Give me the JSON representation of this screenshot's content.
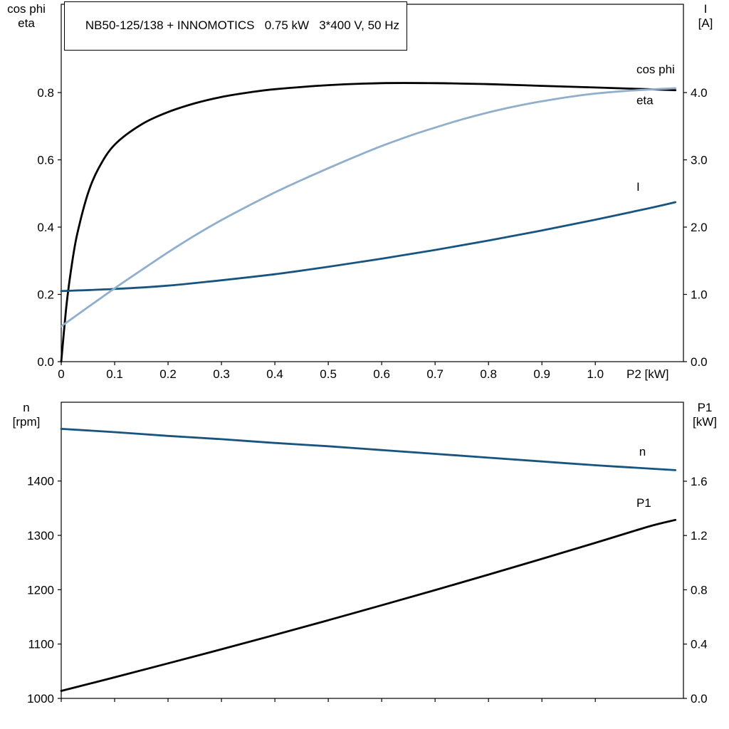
{
  "chart_data": [
    {
      "id": "performance",
      "type": "line",
      "title": "NB50-125/138 + INNOMOTICS   0.75 kW   3*400 V, 50 Hz",
      "xlabel": "P2 [kW]",
      "xlim": [
        0,
        1.165
      ],
      "grid": false,
      "legend_position": "curve-end-labels",
      "x_ticks": [
        0,
        0.1,
        0.2,
        0.3,
        0.4,
        0.5,
        0.6,
        0.7,
        0.8,
        0.9,
        1.0
      ],
      "x_tick_labels": [
        "0",
        "0.1",
        "0.2",
        "0.3",
        "0.4",
        "0.5",
        "0.6",
        "0.7",
        "0.8",
        "0.9",
        "1.0"
      ],
      "left_axis": {
        "label_lines": [
          "cos phi",
          "eta"
        ],
        "range": [
          0,
          1.0625
        ],
        "ticks": [
          0,
          0.2,
          0.4,
          0.6,
          0.8
        ],
        "tick_labels": [
          "0.0",
          "0.2",
          "0.4",
          "0.6",
          "0.8"
        ]
      },
      "right_axis": {
        "label_lines": [
          "I",
          "[A]"
        ],
        "range": [
          0,
          5.3125
        ],
        "ticks": [
          0,
          1,
          2,
          3,
          4
        ],
        "tick_labels": [
          "0.0",
          "1.0",
          "2.0",
          "3.0",
          "4.0"
        ]
      },
      "series": [
        {
          "name": "eta",
          "label": "eta",
          "axis": "left",
          "color": "#000000",
          "label_xy": [
            1.077,
            0.765
          ],
          "points": [
            [
              0,
              0
            ],
            [
              0.01,
              0.17
            ],
            [
              0.02,
              0.29
            ],
            [
              0.03,
              0.38
            ],
            [
              0.05,
              0.5
            ],
            [
              0.07,
              0.575
            ],
            [
              0.1,
              0.645
            ],
            [
              0.15,
              0.705
            ],
            [
              0.2,
              0.742
            ],
            [
              0.25,
              0.768
            ],
            [
              0.3,
              0.787
            ],
            [
              0.35,
              0.8
            ],
            [
              0.4,
              0.81
            ],
            [
              0.5,
              0.822
            ],
            [
              0.6,
              0.828
            ],
            [
              0.7,
              0.828
            ],
            [
              0.8,
              0.825
            ],
            [
              0.9,
              0.82
            ],
            [
              1.0,
              0.815
            ],
            [
              1.1,
              0.81
            ],
            [
              1.15,
              0.807
            ]
          ]
        },
        {
          "name": "I",
          "label": "I",
          "axis": "right",
          "color": "#17547f",
          "label_xy": [
            1.077,
            2.54
          ],
          "points": [
            [
              0,
              1.05
            ],
            [
              0.1,
              1.08
            ],
            [
              0.2,
              1.13
            ],
            [
              0.3,
              1.21
            ],
            [
              0.4,
              1.3
            ],
            [
              0.5,
              1.41
            ],
            [
              0.6,
              1.53
            ],
            [
              0.7,
              1.66
            ],
            [
              0.8,
              1.8
            ],
            [
              0.9,
              1.95
            ],
            [
              1.0,
              2.11
            ],
            [
              1.1,
              2.28
            ],
            [
              1.15,
              2.37
            ]
          ]
        },
        {
          "name": "cos phi",
          "label": "cos phi",
          "axis": "left",
          "color": "#8fafcd",
          "label_xy": [
            1.077,
            0.857
          ],
          "points": [
            [
              0,
              0.105
            ],
            [
              0.05,
              0.162
            ],
            [
              0.1,
              0.218
            ],
            [
              0.15,
              0.272
            ],
            [
              0.2,
              0.325
            ],
            [
              0.25,
              0.375
            ],
            [
              0.3,
              0.421
            ],
            [
              0.35,
              0.463
            ],
            [
              0.4,
              0.503
            ],
            [
              0.45,
              0.54
            ],
            [
              0.5,
              0.575
            ],
            [
              0.55,
              0.609
            ],
            [
              0.6,
              0.641
            ],
            [
              0.65,
              0.67
            ],
            [
              0.7,
              0.696
            ],
            [
              0.75,
              0.72
            ],
            [
              0.8,
              0.741
            ],
            [
              0.85,
              0.759
            ],
            [
              0.9,
              0.774
            ],
            [
              0.95,
              0.787
            ],
            [
              1.0,
              0.797
            ],
            [
              1.05,
              0.804
            ],
            [
              1.1,
              0.809
            ],
            [
              1.15,
              0.813
            ]
          ]
        }
      ]
    },
    {
      "id": "speed-power",
      "type": "line",
      "xlim": [
        0,
        1.165
      ],
      "grid": false,
      "legend_position": "curve-end-labels",
      "x_ticks": [
        0,
        0.1,
        0.2,
        0.3,
        0.4,
        0.5,
        0.6,
        0.7,
        0.8,
        0.9,
        1.0
      ],
      "x_tick_labels": null,
      "left_axis": {
        "label_lines": [
          "n",
          "[rpm]"
        ],
        "range": [
          1000,
          1545
        ],
        "ticks": [
          1000,
          1100,
          1200,
          1300,
          1400
        ],
        "tick_labels": [
          "1000",
          "1100",
          "1200",
          "1300",
          "1400"
        ]
      },
      "right_axis": {
        "label_lines": [
          "P1",
          "[kW]"
        ],
        "range": [
          0,
          2.182
        ],
        "ticks": [
          0,
          0.4,
          0.8,
          1.2,
          1.6
        ],
        "tick_labels": [
          "0.0",
          "0.4",
          "0.8",
          "1.2",
          "1.6"
        ]
      },
      "series": [
        {
          "name": "n",
          "label": "n",
          "axis": "left",
          "color": "#17547f",
          "label_xy": [
            1.082,
            1447
          ],
          "points": [
            [
              0,
              1496
            ],
            [
              0.1,
              1490
            ],
            [
              0.2,
              1483
            ],
            [
              0.3,
              1477
            ],
            [
              0.4,
              1470
            ],
            [
              0.5,
              1464
            ],
            [
              0.6,
              1457
            ],
            [
              0.7,
              1450
            ],
            [
              0.8,
              1443
            ],
            [
              0.9,
              1436
            ],
            [
              1.0,
              1429
            ],
            [
              1.1,
              1423
            ],
            [
              1.15,
              1420
            ]
          ]
        },
        {
          "name": "P1",
          "label": "P1",
          "axis": "right",
          "color": "#000000",
          "label_xy": [
            1.077,
            1.41
          ],
          "points": [
            [
              0,
              0.055
            ],
            [
              0.1,
              0.155
            ],
            [
              0.2,
              0.258
            ],
            [
              0.3,
              0.362
            ],
            [
              0.4,
              0.468
            ],
            [
              0.5,
              0.576
            ],
            [
              0.6,
              0.686
            ],
            [
              0.7,
              0.798
            ],
            [
              0.8,
              0.912
            ],
            [
              0.9,
              1.028
            ],
            [
              1.0,
              1.146
            ],
            [
              1.1,
              1.266
            ],
            [
              1.15,
              1.315
            ]
          ]
        }
      ]
    }
  ]
}
